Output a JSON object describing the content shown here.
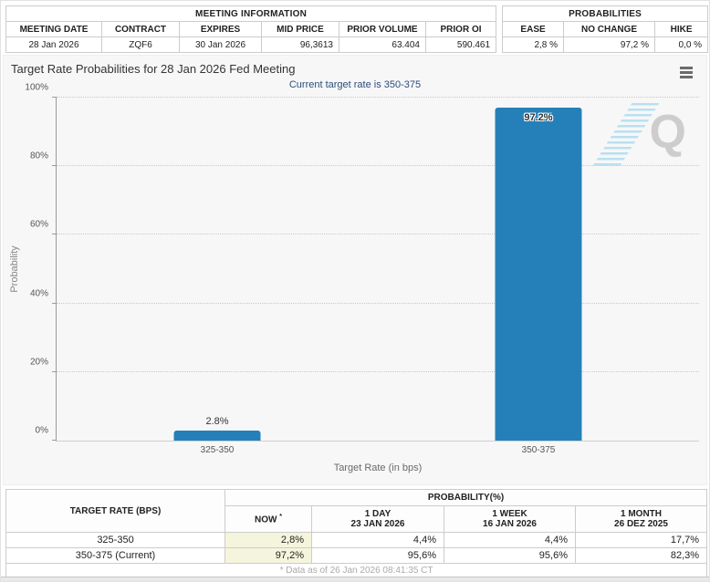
{
  "meeting_info": {
    "title": "MEETING INFORMATION",
    "columns": [
      "MEETING DATE",
      "CONTRACT",
      "EXPIRES",
      "MID PRICE",
      "PRIOR VOLUME",
      "PRIOR OI"
    ],
    "values": [
      "28 Jan 2026",
      "ZQF6",
      "30 Jan 2026",
      "96,3613",
      "63.404",
      "590.461"
    ]
  },
  "probabilities_summary": {
    "title": "PROBABILITIES",
    "columns": [
      "EASE",
      "NO CHANGE",
      "HIKE"
    ],
    "values": [
      "2,8 %",
      "97,2 %",
      "0,0 %"
    ]
  },
  "chart_data": {
    "type": "bar",
    "title": "Target Rate Probabilities for 28 Jan 2026 Fed Meeting",
    "subtitle": "Current target rate is 350-375",
    "categories": [
      "325-350",
      "350-375"
    ],
    "values": [
      2.8,
      97.2
    ],
    "labels": [
      "2.8%",
      "97.2%"
    ],
    "label_inside": [
      false,
      true
    ],
    "xlabel": "Target Rate (in bps)",
    "ylabel": "Probability",
    "ylim": [
      0,
      100
    ],
    "yticks": [
      "0%",
      "20%",
      "40%",
      "60%",
      "80%",
      "100%"
    ],
    "grid": "horizontal-dotted",
    "legend": "none",
    "bar_color": "#2580b9"
  },
  "icons": {
    "chart_menu": "hamburger-menu",
    "watermark_letter": "Q"
  },
  "probability_table": {
    "header_left": "TARGET RATE (BPS)",
    "header_right": "PROBABILITY(%)",
    "subheaders": {
      "now": "NOW",
      "now_mark": "*",
      "day_1": "1 DAY",
      "day_2": "23 JAN 2026",
      "week_1": "1 WEEK",
      "week_2": "16 JAN 2026",
      "month_1": "1 MONTH",
      "month_2": "26 DEZ 2025"
    },
    "rows": [
      {
        "rate": "325-350",
        "now": "2,8%",
        "day": "4,4%",
        "week": "4,4%",
        "month": "17,7%"
      },
      {
        "rate": "350-375 (Current)",
        "now": "97,2%",
        "day": "95,6%",
        "week": "95,6%",
        "month": "82,3%"
      }
    ],
    "footnote": "* Data as of 26 Jan 2026 08:41:35 CT"
  },
  "colors": {
    "bar_blue": "#2580b9",
    "subtitle_blue": "#2c4d7c",
    "now_column_yellow": "#f5f5dd",
    "chart_background": "#f7f7f7",
    "table_border": "#cccccc",
    "footnote_gray": "#aaaaaa"
  }
}
